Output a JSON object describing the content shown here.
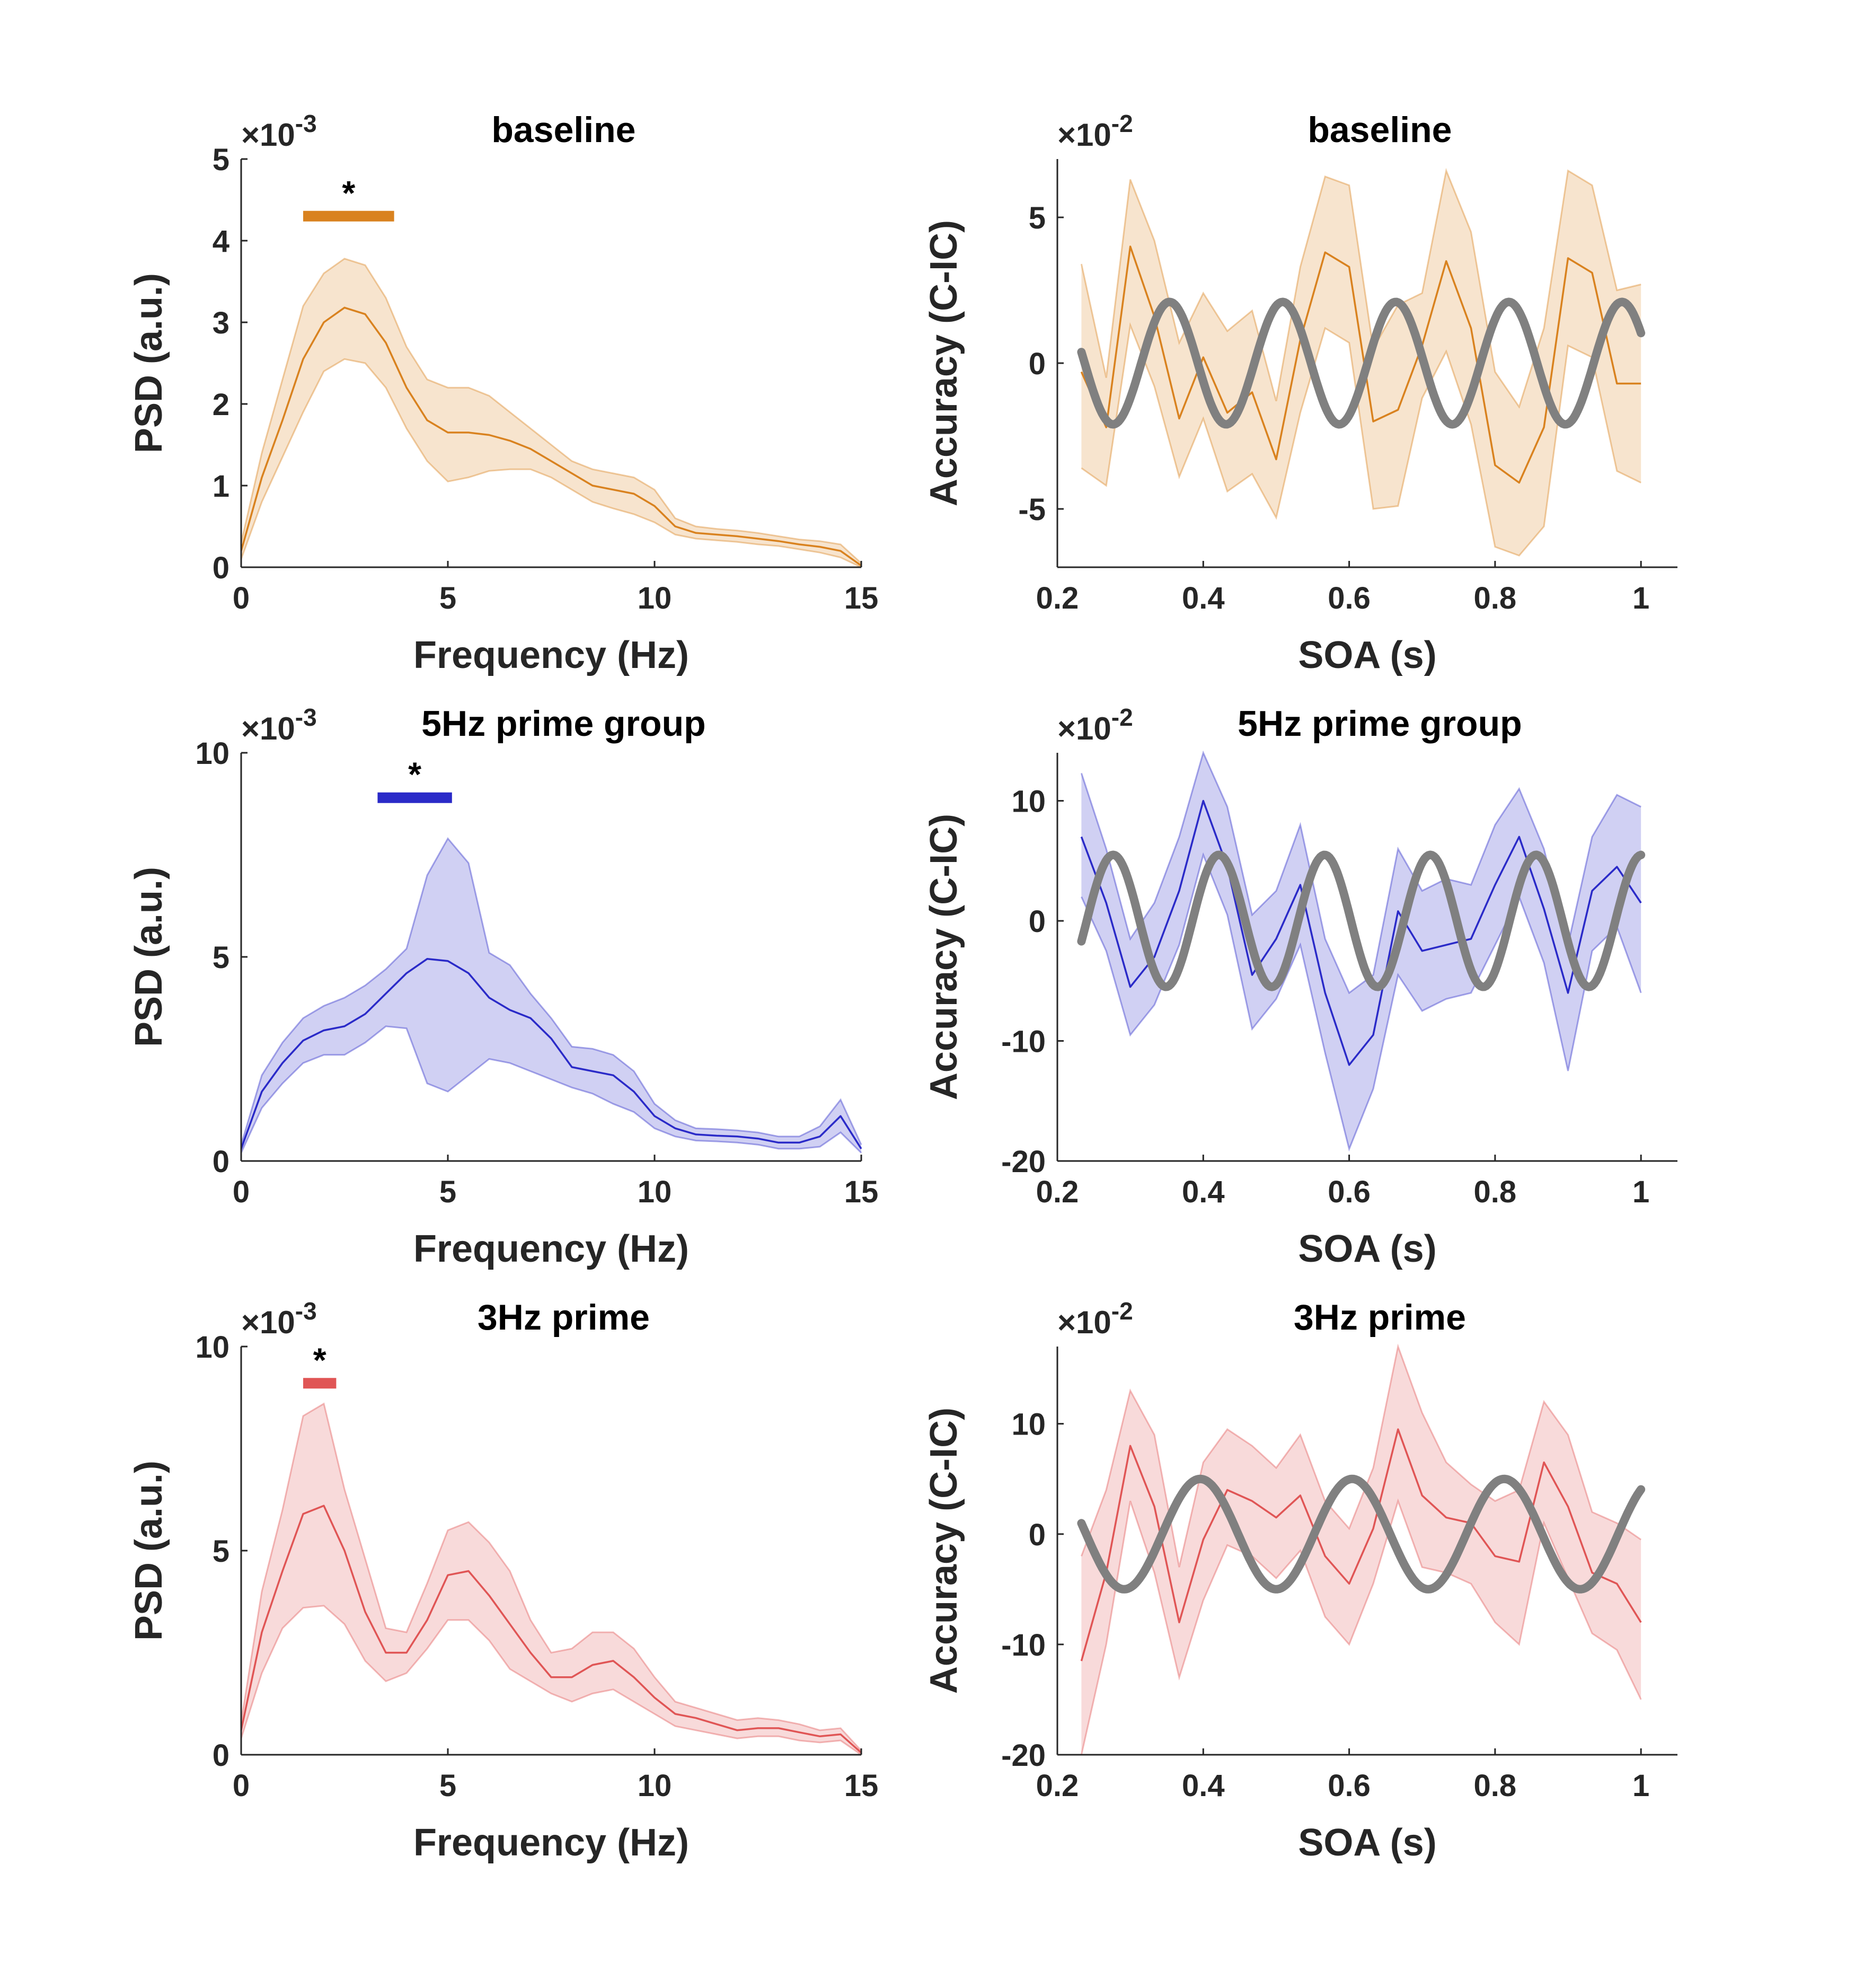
{
  "chart_data": [
    {
      "type": "line",
      "title": "baseline",
      "xlabel": "Frequency (Hz)",
      "ylabel": "PSD (a.u.)",
      "exponent_label": "×10",
      "exponent": "-3",
      "xlim": [
        0,
        15
      ],
      "ylim": [
        0,
        5
      ],
      "xticks": [
        0,
        5,
        10,
        15
      ],
      "yticks": [
        0,
        1,
        2,
        3,
        4,
        5
      ],
      "color": "#d9821f",
      "x": [
        0,
        0.5,
        1,
        1.5,
        2,
        2.5,
        3,
        3.5,
        4,
        4.5,
        5,
        5.5,
        6,
        6.5,
        7,
        7.5,
        8,
        8.5,
        9,
        9.5,
        10,
        10.5,
        11,
        11.5,
        12,
        12.5,
        13,
        13.5,
        14,
        14.5,
        15
      ],
      "mean": [
        0.2,
        1.1,
        1.8,
        2.55,
        3.0,
        3.18,
        3.1,
        2.75,
        2.2,
        1.8,
        1.65,
        1.65,
        1.62,
        1.55,
        1.45,
        1.3,
        1.15,
        1.0,
        0.95,
        0.9,
        0.75,
        0.5,
        0.42,
        0.4,
        0.38,
        0.35,
        0.32,
        0.28,
        0.25,
        0.2,
        0.02
      ],
      "upper": [
        0.3,
        1.4,
        2.3,
        3.2,
        3.6,
        3.78,
        3.7,
        3.3,
        2.7,
        2.3,
        2.2,
        2.2,
        2.1,
        1.9,
        1.7,
        1.5,
        1.3,
        1.2,
        1.15,
        1.1,
        0.95,
        0.6,
        0.5,
        0.47,
        0.45,
        0.42,
        0.38,
        0.34,
        0.32,
        0.28,
        0.05
      ],
      "lower": [
        0.1,
        0.8,
        1.35,
        1.9,
        2.4,
        2.55,
        2.5,
        2.2,
        1.7,
        1.3,
        1.05,
        1.1,
        1.18,
        1.2,
        1.2,
        1.1,
        0.95,
        0.8,
        0.72,
        0.65,
        0.55,
        0.4,
        0.35,
        0.33,
        0.31,
        0.28,
        0.26,
        0.22,
        0.18,
        0.12,
        0.0
      ],
      "significance": {
        "label": "*",
        "x_start": 1.5,
        "x_end": 3.7,
        "y": 4.3
      }
    },
    {
      "type": "line",
      "title": "baseline",
      "xlabel": "SOA (s)",
      "ylabel": "Accuracy (C-IC)",
      "exponent_label": "×10",
      "exponent": "-2",
      "xlim": [
        0.2,
        1.05
      ],
      "ylim": [
        -7,
        7
      ],
      "xticks": [
        0.2,
        0.4,
        0.6,
        0.8,
        1
      ],
      "yticks": [
        -5,
        0,
        5
      ],
      "color": "#d9821f",
      "fit_color": "#808080",
      "x": [
        0.233,
        0.267,
        0.3,
        0.333,
        0.367,
        0.4,
        0.433,
        0.467,
        0.5,
        0.533,
        0.567,
        0.6,
        0.633,
        0.667,
        0.7,
        0.733,
        0.767,
        0.8,
        0.833,
        0.867,
        0.9,
        0.933,
        0.967,
        1.0
      ],
      "mean": [
        -0.3,
        -2.2,
        4.0,
        1.6,
        -1.9,
        0.2,
        -1.7,
        -1.0,
        -3.3,
        0.8,
        3.8,
        3.3,
        -2.0,
        -1.6,
        0.6,
        3.5,
        1.2,
        -3.5,
        -4.1,
        -2.2,
        3.6,
        3.1,
        -0.7,
        -0.7
      ],
      "upper": [
        3.4,
        -0.5,
        6.3,
        4.2,
        0.7,
        2.4,
        1.1,
        1.8,
        -1.3,
        3.3,
        6.4,
        6.1,
        0.5,
        2.0,
        2.4,
        6.6,
        4.5,
        -0.3,
        -1.5,
        1.2,
        6.6,
        6.1,
        2.5,
        2.7
      ],
      "lower": [
        -3.6,
        -4.2,
        1.3,
        -0.8,
        -3.9,
        -1.9,
        -4.4,
        -3.8,
        -5.3,
        -1.7,
        1.2,
        0.7,
        -5.0,
        -4.9,
        -1.2,
        0.4,
        -2.1,
        -6.3,
        -6.6,
        -5.6,
        0.6,
        0.2,
        -3.7,
        -4.1
      ],
      "fit": {
        "amplitude": 2.1,
        "frequency": 6.45,
        "phase": -0.2,
        "offset": 0.0,
        "x_start": 0.233,
        "x_end": 1.0
      }
    },
    {
      "type": "line",
      "title": "5Hz prime group",
      "xlabel": "Frequency (Hz)",
      "ylabel": "PSD (a.u.)",
      "exponent_label": "×10",
      "exponent": "-3",
      "xlim": [
        0,
        15
      ],
      "ylim": [
        0,
        10
      ],
      "xticks": [
        0,
        5,
        10,
        15
      ],
      "yticks": [
        0,
        5,
        10
      ],
      "color": "#2a2ac8",
      "x": [
        0,
        0.5,
        1,
        1.5,
        2,
        2.5,
        3,
        3.5,
        4,
        4.5,
        5,
        5.5,
        6,
        6.5,
        7,
        7.5,
        8,
        8.5,
        9,
        9.5,
        10,
        10.5,
        11,
        11.5,
        12,
        12.5,
        13,
        13.5,
        14,
        14.5,
        15
      ],
      "mean": [
        0.3,
        1.7,
        2.4,
        2.95,
        3.2,
        3.3,
        3.6,
        4.1,
        4.6,
        4.95,
        4.9,
        4.6,
        4.0,
        3.7,
        3.5,
        3.0,
        2.3,
        2.2,
        2.1,
        1.7,
        1.1,
        0.8,
        0.65,
        0.62,
        0.6,
        0.55,
        0.45,
        0.45,
        0.6,
        1.1,
        0.3
      ],
      "upper": [
        0.4,
        2.1,
        2.9,
        3.5,
        3.8,
        4.0,
        4.3,
        4.7,
        5.2,
        7.0,
        7.9,
        7.3,
        5.1,
        4.8,
        4.1,
        3.5,
        2.8,
        2.75,
        2.6,
        2.2,
        1.4,
        1.0,
        0.8,
        0.78,
        0.75,
        0.7,
        0.6,
        0.6,
        0.85,
        1.5,
        0.4
      ],
      "lower": [
        0.2,
        1.3,
        1.9,
        2.4,
        2.6,
        2.6,
        2.9,
        3.3,
        3.25,
        1.9,
        1.7,
        2.1,
        2.5,
        2.4,
        2.2,
        2.0,
        1.8,
        1.65,
        1.4,
        1.2,
        0.8,
        0.6,
        0.5,
        0.48,
        0.45,
        0.4,
        0.3,
        0.3,
        0.35,
        0.7,
        0.2
      ],
      "significance": {
        "label": "*",
        "x_start": 3.3,
        "x_end": 5.1,
        "y": 8.9
      }
    },
    {
      "type": "line",
      "title": "5Hz prime group",
      "xlabel": "SOA (s)",
      "ylabel": "Accuracy (C-IC)",
      "exponent_label": "×10",
      "exponent": "-2",
      "xlim": [
        0.2,
        1.05
      ],
      "ylim": [
        -20,
        14
      ],
      "xticks": [
        0.2,
        0.4,
        0.6,
        0.8,
        1
      ],
      "yticks": [
        -20,
        -10,
        0,
        10
      ],
      "color": "#2a2ac8",
      "fit_color": "#808080",
      "x": [
        0.233,
        0.267,
        0.3,
        0.333,
        0.367,
        0.4,
        0.433,
        0.467,
        0.5,
        0.533,
        0.567,
        0.6,
        0.633,
        0.667,
        0.7,
        0.733,
        0.767,
        0.8,
        0.833,
        0.867,
        0.9,
        0.933,
        0.967,
        1.0
      ],
      "mean": [
        7.0,
        1.5,
        -5.5,
        -3.0,
        2.5,
        10.0,
        4.5,
        -4.5,
        -1.5,
        3.0,
        -6.0,
        -12.0,
        -9.5,
        0.8,
        -2.5,
        -2.0,
        -1.5,
        3.0,
        7.0,
        1.0,
        -6.0,
        2.5,
        4.5,
        1.5
      ],
      "upper": [
        12.3,
        6.0,
        -1.5,
        1.5,
        7.0,
        14.0,
        9.5,
        0.5,
        2.5,
        8.0,
        -1.5,
        -6.0,
        -4.5,
        6.0,
        2.5,
        3.5,
        3.0,
        8.0,
        11.0,
        6.0,
        -2.0,
        7.0,
        10.5,
        9.5
      ],
      "lower": [
        2.0,
        -2.5,
        -9.5,
        -7.0,
        -2.0,
        5.5,
        0.5,
        -9.0,
        -6.5,
        -2.0,
        -11.0,
        -19.0,
        -14.0,
        -4.5,
        -7.5,
        -6.5,
        -6.0,
        -2.0,
        2.0,
        -3.5,
        -12.5,
        -2.5,
        -0.5,
        -6.0
      ],
      "fit": {
        "amplitude": 5.5,
        "frequency": 6.9,
        "phase": 2.15,
        "offset": 0.0,
        "x_start": 0.233,
        "x_end": 1.0
      }
    },
    {
      "type": "line",
      "title": "3Hz prime",
      "xlabel": "Frequency (Hz)",
      "ylabel": "PSD (a.u.)",
      "exponent_label": "×10",
      "exponent": "-3",
      "xlim": [
        0,
        15
      ],
      "ylim": [
        0,
        10
      ],
      "xticks": [
        0,
        5,
        10,
        15
      ],
      "yticks": [
        0,
        5,
        10
      ],
      "color": "#e05555",
      "x": [
        0,
        0.5,
        1,
        1.5,
        2,
        2.5,
        3,
        3.5,
        4,
        4.5,
        5,
        5.5,
        6,
        6.5,
        7,
        7.5,
        8,
        8.5,
        9,
        9.5,
        10,
        10.5,
        11,
        11.5,
        12,
        12.5,
        13,
        13.5,
        14,
        14.5,
        15
      ],
      "mean": [
        0.6,
        3.0,
        4.5,
        5.9,
        6.1,
        5.0,
        3.5,
        2.5,
        2.5,
        3.3,
        4.4,
        4.5,
        3.9,
        3.2,
        2.5,
        1.9,
        1.9,
        2.2,
        2.3,
        1.9,
        1.4,
        1.0,
        0.9,
        0.75,
        0.6,
        0.65,
        0.65,
        0.55,
        0.45,
        0.5,
        0.05
      ],
      "upper": [
        0.8,
        4.0,
        6.0,
        8.3,
        8.6,
        6.5,
        4.8,
        3.1,
        3.0,
        4.2,
        5.5,
        5.7,
        5.2,
        4.5,
        3.3,
        2.5,
        2.6,
        3.0,
        3.0,
        2.6,
        1.9,
        1.3,
        1.15,
        1.0,
        0.85,
        0.9,
        0.85,
        0.75,
        0.6,
        0.65,
        0.1
      ],
      "lower": [
        0.4,
        2.0,
        3.1,
        3.6,
        3.65,
        3.2,
        2.3,
        1.8,
        2.0,
        2.6,
        3.3,
        3.3,
        2.8,
        2.1,
        1.8,
        1.5,
        1.3,
        1.5,
        1.6,
        1.3,
        1.0,
        0.7,
        0.6,
        0.5,
        0.4,
        0.45,
        0.45,
        0.35,
        0.3,
        0.35,
        0.0
      ],
      "significance": {
        "label": "*",
        "x_start": 1.5,
        "x_end": 2.3,
        "y": 9.1
      }
    },
    {
      "type": "line",
      "title": "3Hz prime",
      "xlabel": "SOA (s)",
      "ylabel": "Accuracy (C-IC)",
      "exponent_label": "×10",
      "exponent": "-2",
      "xlim": [
        0.2,
        1.05
      ],
      "ylim": [
        -20,
        17
      ],
      "xticks": [
        0.2,
        0.4,
        0.6,
        0.8,
        1
      ],
      "yticks": [
        -20,
        -10,
        0,
        10
      ],
      "color": "#e05555",
      "fit_color": "#808080",
      "x": [
        0.233,
        0.267,
        0.3,
        0.333,
        0.367,
        0.4,
        0.433,
        0.467,
        0.5,
        0.533,
        0.567,
        0.6,
        0.633,
        0.667,
        0.7,
        0.733,
        0.767,
        0.8,
        0.833,
        0.867,
        0.9,
        0.933,
        0.967,
        1.0
      ],
      "mean": [
        -11.5,
        -3.5,
        8.0,
        2.5,
        -8.0,
        -0.5,
        4.0,
        3.0,
        1.5,
        3.5,
        -2.0,
        -4.5,
        0.5,
        9.5,
        3.5,
        1.5,
        1.0,
        -2.0,
        -2.5,
        6.5,
        2.5,
        -3.5,
        -4.5,
        -8.0
      ],
      "upper": [
        -2.0,
        4.0,
        13.0,
        9.0,
        -3.0,
        6.5,
        9.5,
        8.0,
        6.0,
        9.0,
        3.0,
        0.5,
        6.0,
        17.0,
        11.0,
        6.5,
        4.5,
        3.0,
        4.0,
        12.0,
        9.0,
        2.0,
        1.0,
        -0.5
      ],
      "lower": [
        -20.0,
        -10.0,
        3.0,
        -3.5,
        -13.0,
        -6.0,
        -1.0,
        -2.0,
        -4.0,
        -1.5,
        -7.5,
        -10.0,
        -4.5,
        3.0,
        -3.0,
        -3.5,
        -4.5,
        -8.0,
        -10.0,
        1.0,
        -4.0,
        -9.0,
        -10.5,
        -15.0
      ],
      "fit": {
        "amplitude": 5.0,
        "frequency": 4.8,
        "phase": 2.2,
        "offset": 0.0,
        "x_start": 0.233,
        "x_end": 1.0
      }
    }
  ]
}
